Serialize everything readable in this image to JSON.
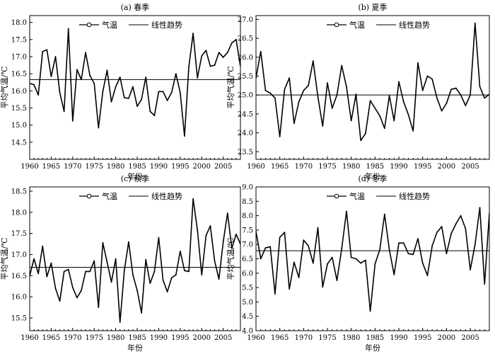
{
  "chart_data": [
    {
      "panel": "(a) 春季",
      "type": "line",
      "ylabel": "平均气温/℃",
      "xlabel": "年份",
      "xlim": [
        1960,
        2009
      ],
      "ylim": [
        14.0,
        18.2
      ],
      "yticks": [
        "14.5",
        "15.0",
        "15.5",
        "16.0",
        "16.5",
        "17.0",
        "17.5",
        "18.0"
      ],
      "xticks": [
        "1960",
        "1965",
        "1970",
        "1975",
        "1980",
        "1985",
        "1990",
        "1995",
        "2000",
        "2005"
      ],
      "legend": [
        "气温",
        "线性趋势"
      ],
      "trend": 16.33,
      "x_start": 1960,
      "values": [
        16.22,
        16.18,
        15.88,
        17.15,
        17.2,
        16.42,
        17.0,
        15.95,
        15.4,
        17.82,
        15.12,
        16.62,
        16.33,
        17.12,
        16.45,
        16.22,
        14.92,
        15.98,
        16.6,
        15.68,
        16.12,
        16.4,
        15.8,
        15.78,
        16.12,
        15.55,
        15.75,
        16.4,
        15.4,
        15.28,
        15.98,
        15.98,
        15.72,
        15.95,
        16.5,
        15.95,
        14.68,
        16.7,
        17.68,
        16.38,
        17.02,
        17.18,
        16.72,
        16.75,
        17.12,
        16.98,
        17.12,
        17.4,
        17.5,
        16.72
      ]
    },
    {
      "panel": "(b) 夏季",
      "type": "line",
      "ylabel": "平均气温/℃",
      "xlabel": "年份",
      "xlim": [
        1960,
        2009
      ],
      "ylim": [
        23.3,
        27.1
      ],
      "yticks": [
        "23.5",
        "24.0",
        "24.5",
        "25.0",
        "25.5",
        "26.0",
        "26.5",
        "27.0"
      ],
      "xticks": [
        "1960",
        "1965",
        "1970",
        "1975",
        "1980",
        "1985",
        "1990",
        "1995",
        "2000",
        "2005"
      ],
      "legend": [
        "气温",
        "线性趋势"
      ],
      "trend": 25.0,
      "x_start": 1960,
      "values": [
        25.45,
        26.15,
        25.12,
        25.05,
        24.92,
        23.9,
        25.15,
        25.45,
        24.25,
        24.82,
        25.12,
        25.25,
        25.9,
        24.95,
        24.18,
        25.32,
        24.65,
        25.0,
        25.78,
        25.22,
        24.32,
        25.02,
        23.8,
        23.98,
        24.85,
        24.65,
        24.45,
        24.12,
        24.98,
        24.32,
        25.35,
        24.82,
        24.48,
        24.05,
        25.85,
        25.12,
        25.5,
        25.42,
        24.92,
        24.58,
        24.78,
        25.15,
        25.18,
        25.0,
        24.72,
        25.0,
        26.9,
        25.22,
        24.92,
        25.02
      ]
    },
    {
      "panel": "(c) 秋季",
      "type": "line",
      "ylabel": "平均气温/℃",
      "xlabel": "年份",
      "xlim": [
        1960,
        2009
      ],
      "ylim": [
        15.2,
        18.6
      ],
      "yticks": [
        "15.5",
        "16.0",
        "16.5",
        "17.0",
        "17.5",
        "18.0",
        "18.5"
      ],
      "xticks": [
        "1960",
        "1965",
        "1970",
        "1975",
        "1980",
        "1985",
        "1990",
        "1995",
        "2000",
        "2005"
      ],
      "legend": [
        "气温",
        "线性趋势"
      ],
      "trend": 16.7,
      "x_start": 1960,
      "values": [
        16.5,
        16.9,
        16.55,
        17.2,
        16.48,
        16.8,
        16.2,
        15.9,
        16.6,
        16.65,
        16.22,
        15.98,
        16.15,
        16.6,
        16.6,
        16.85,
        15.75,
        17.28,
        16.82,
        16.35,
        16.9,
        15.4,
        16.62,
        17.3,
        16.52,
        16.15,
        15.62,
        16.88,
        16.32,
        16.6,
        17.4,
        16.4,
        16.12,
        16.45,
        16.52,
        17.08,
        16.62,
        16.6,
        18.32,
        17.58,
        16.52,
        17.45,
        17.68,
        16.85,
        16.42,
        17.3,
        17.98,
        17.15,
        17.48,
        17.25
      ]
    },
    {
      "panel": "(d) 冬季",
      "type": "line",
      "ylabel": "平均气温/℃",
      "xlabel": "年份",
      "xlim": [
        1960,
        2009
      ],
      "ylim": [
        4.0,
        9.0
      ],
      "yticks": [
        "4.0",
        "4.5",
        "5.0",
        "5.5",
        "6.0",
        "6.5",
        "7.0",
        "7.5",
        "8.0",
        "8.5",
        "9.0"
      ],
      "xticks": [
        "1960",
        "1965",
        "1970",
        "1975",
        "1980",
        "1985",
        "1990",
        "1995",
        "2000",
        "2005"
      ],
      "legend": [
        "气温",
        "线性趋势"
      ],
      "trend": 6.78,
      "x_start": 1960,
      "values": [
        7.45,
        6.5,
        6.88,
        6.92,
        5.28,
        7.25,
        7.42,
        5.45,
        6.38,
        5.85,
        7.15,
        6.95,
        6.35,
        7.58,
        5.52,
        6.32,
        6.55,
        5.75,
        6.85,
        8.15,
        6.55,
        6.5,
        6.35,
        6.45,
        4.68,
        6.32,
        6.82,
        8.05,
        6.82,
        5.95,
        7.05,
        7.05,
        6.68,
        6.65,
        7.2,
        6.35,
        5.92,
        6.95,
        7.42,
        7.62,
        6.68,
        7.38,
        7.72,
        8.0,
        7.55,
        6.12,
        7.0,
        8.28,
        5.62,
        8.08
      ]
    }
  ]
}
